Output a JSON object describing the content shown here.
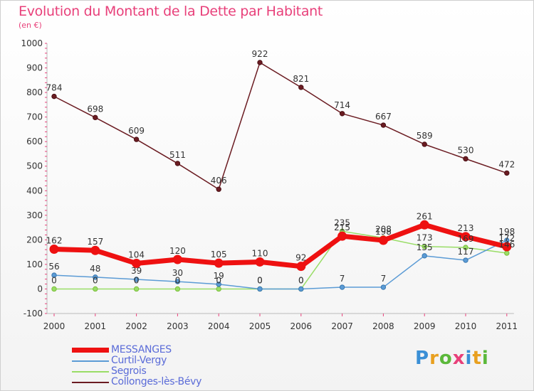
{
  "title": "Evolution du Montant de la Dette par Habitant",
  "subtitle": "(en €)",
  "logo": {
    "letters": [
      "P",
      "r",
      "o",
      "x",
      "i",
      "t",
      "i"
    ],
    "colors": [
      "#3a8fd6",
      "#e8a020",
      "#5bb83a",
      "#e8407a",
      "#3a8fd6",
      "#e8a020",
      "#5bb83a"
    ]
  },
  "chart_data": {
    "type": "line",
    "title": "Evolution du Montant de la Dette par Habitant",
    "ylabel": "(en €)",
    "x": [
      "2000",
      "2001",
      "2002",
      "2003",
      "2004",
      "2005",
      "2006",
      "2007",
      "2008",
      "2009",
      "2010",
      "2011"
    ],
    "ylim": [
      -100,
      1000
    ],
    "yticks": [
      -100,
      0,
      100,
      200,
      300,
      400,
      500,
      600,
      700,
      800,
      900,
      1000
    ],
    "grid": false,
    "legend_position": "bottom",
    "series": [
      {
        "name": "MESSANGES",
        "color": "#ee1111",
        "values": [
          162,
          157,
          104,
          120,
          105,
          110,
          92,
          215,
          198,
          261,
          213,
          172
        ]
      },
      {
        "name": "Curtil-Vergy",
        "color": "#5b9bd5",
        "values": [
          56,
          48,
          39,
          30,
          19,
          0,
          0,
          7,
          7,
          135,
          117,
          198
        ]
      },
      {
        "name": "Segrois",
        "color": "#99dd66",
        "values": [
          0,
          0,
          0,
          0,
          0,
          0,
          0,
          235,
          208,
          173,
          169,
          146
        ]
      },
      {
        "name": "Collonges-lès-Bévy",
        "color": "#6b1c22",
        "values": [
          784,
          698,
          609,
          511,
          406,
          922,
          821,
          714,
          667,
          589,
          530,
          472
        ]
      }
    ],
    "labels": [
      {
        "series": 0,
        "values": [
          "162",
          "157",
          "104",
          "120",
          "105",
          "110",
          "92",
          "215",
          "198",
          "261",
          "213",
          "172"
        ]
      },
      {
        "series": 1,
        "values": [
          "56",
          "48",
          "39",
          "30",
          "19",
          "0",
          "0",
          "7",
          "7",
          "135",
          "117",
          "198"
        ]
      },
      {
        "series": 2,
        "values": [
          "0",
          "0",
          "0",
          "0",
          "0",
          "0",
          "0",
          "235",
          "208",
          "173",
          "169",
          "146"
        ]
      },
      {
        "series": 3,
        "values": [
          "784",
          "698",
          "609",
          "511",
          "406",
          "922",
          "821",
          "714",
          "667",
          "589",
          "530",
          "472"
        ]
      }
    ]
  }
}
